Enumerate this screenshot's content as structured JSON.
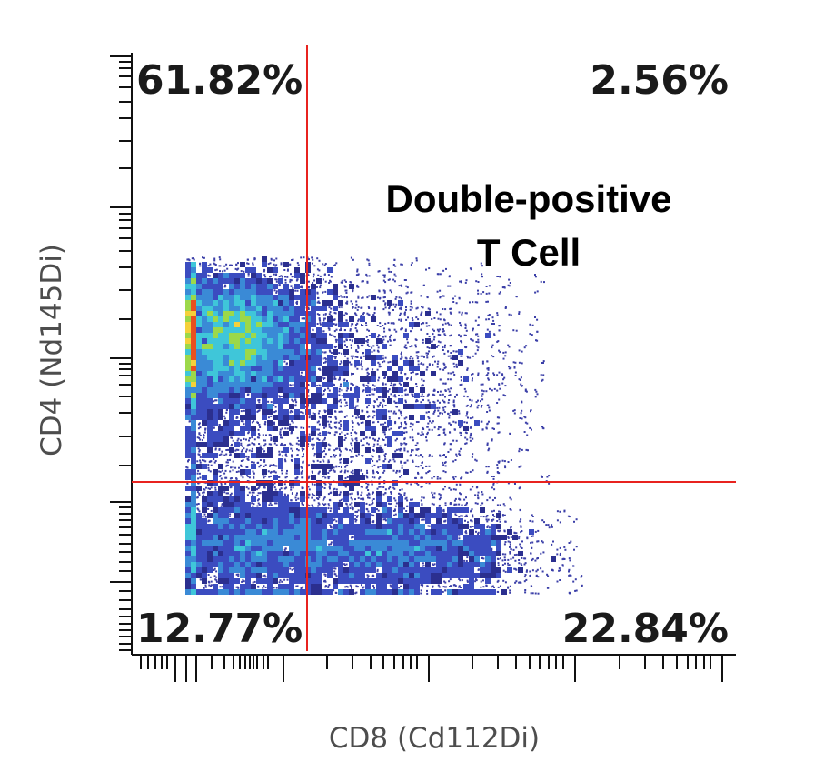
{
  "chart_data": {
    "type": "scatter",
    "subtype": "flow-cytometry-density-dot-plot",
    "xlabel": "CD8 (Cd112Di)",
    "ylabel": "CD4 (Nd145Di)",
    "x_scale": "log",
    "y_scale": "log",
    "tick_labels_shown": false,
    "quadrant_gate_color": "#e8231f",
    "density_colormap": [
      "#2b2f8f",
      "#3b4cc0",
      "#3a8ad6",
      "#3fc6d9",
      "#9cd84a",
      "#f5d13a",
      "#e8501f"
    ],
    "quadrants": [
      {
        "name": "upper-left",
        "label": "61.82%",
        "value": 61.82
      },
      {
        "name": "upper-right",
        "label": "2.56%",
        "value": 2.56
      },
      {
        "name": "lower-left",
        "label": "12.77%",
        "value": 12.77
      },
      {
        "name": "lower-right",
        "label": "22.84%",
        "value": 22.84
      }
    ],
    "annotations": [
      {
        "text_line1": "Double-positive",
        "text_line2": "T Cell",
        "quadrant": "upper-right"
      }
    ]
  }
}
